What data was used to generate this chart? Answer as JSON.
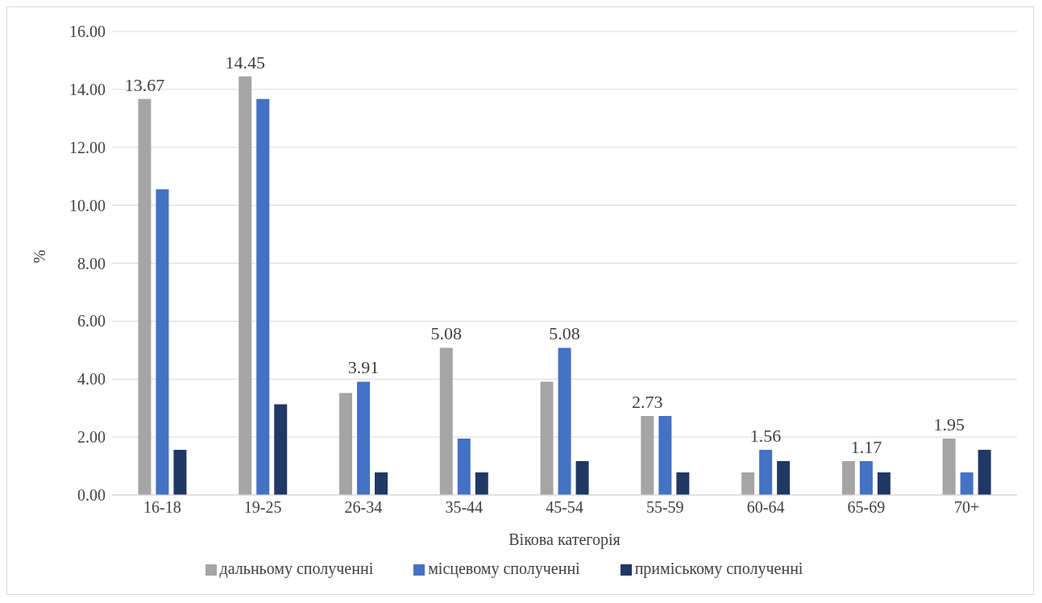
{
  "chart_data": {
    "type": "bar",
    "xlabel": "Вікова категорія",
    "ylabel": "%",
    "categories": [
      "16-18",
      "19-25",
      "26-34",
      "35-44",
      "45-54",
      "55-59",
      "60-64",
      "65-69",
      "70+"
    ],
    "series": [
      {
        "name": "дальньому сполученні",
        "color": "#a5a5a5",
        "values": [
          13.67,
          14.45,
          3.52,
          5.08,
          3.91,
          2.73,
          0.78,
          1.17,
          1.95
        ],
        "value_labels": [
          "13.67",
          "14.45",
          null,
          "5.08",
          null,
          "2.73",
          null,
          null,
          "1.95"
        ]
      },
      {
        "name": "місцевому сполученні",
        "color": "#4472c4",
        "values": [
          10.55,
          13.67,
          3.91,
          1.95,
          5.08,
          2.73,
          1.56,
          1.17,
          0.78
        ],
        "value_labels": [
          null,
          null,
          "3.91",
          null,
          "5.08",
          null,
          "1.56",
          "1.17",
          null
        ]
      },
      {
        "name": "приміському сполученні",
        "color": "#1f3864",
        "values": [
          1.56,
          3.13,
          0.78,
          0.78,
          1.17,
          0.78,
          1.17,
          0.78,
          1.56
        ]
      }
    ],
    "ylim": [
      0,
      16
    ],
    "yticks": [
      {
        "value": 0,
        "label": "0.00"
      },
      {
        "value": 2,
        "label": "2.00"
      },
      {
        "value": 4,
        "label": "4.00"
      },
      {
        "value": 6,
        "label": "6.00"
      },
      {
        "value": 8,
        "label": "8.00"
      },
      {
        "value": 10,
        "label": "10.00"
      },
      {
        "value": 12,
        "label": "12.00"
      },
      {
        "value": 14,
        "label": "14.00"
      },
      {
        "value": 16,
        "label": "16.00"
      }
    ],
    "grid": "y",
    "legend": "bottom"
  }
}
